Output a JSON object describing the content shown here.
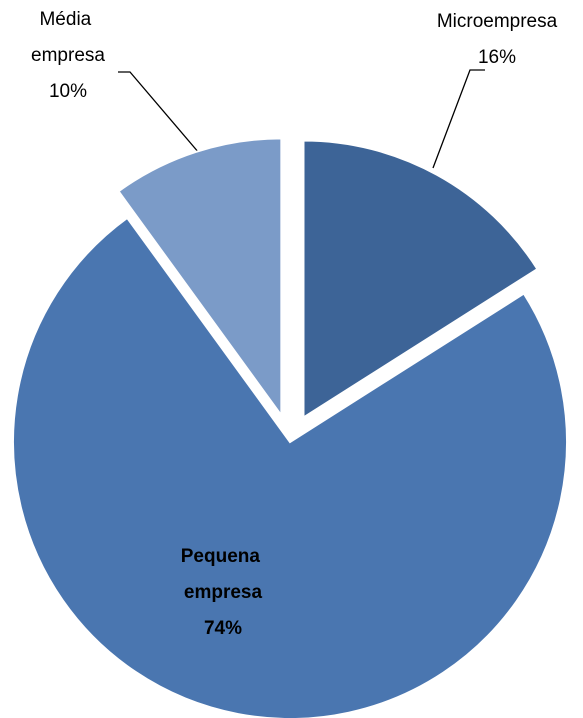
{
  "chart_data": {
    "type": "pie",
    "categories": [
      "Microempresa",
      "Pequena empresa",
      "Média empresa"
    ],
    "values": [
      16,
      74,
      10
    ],
    "value_labels": [
      "16%",
      "74%",
      "10%"
    ],
    "colors": [
      "#3d6497",
      "#4a76b0",
      "#7b9bc8"
    ]
  }
}
